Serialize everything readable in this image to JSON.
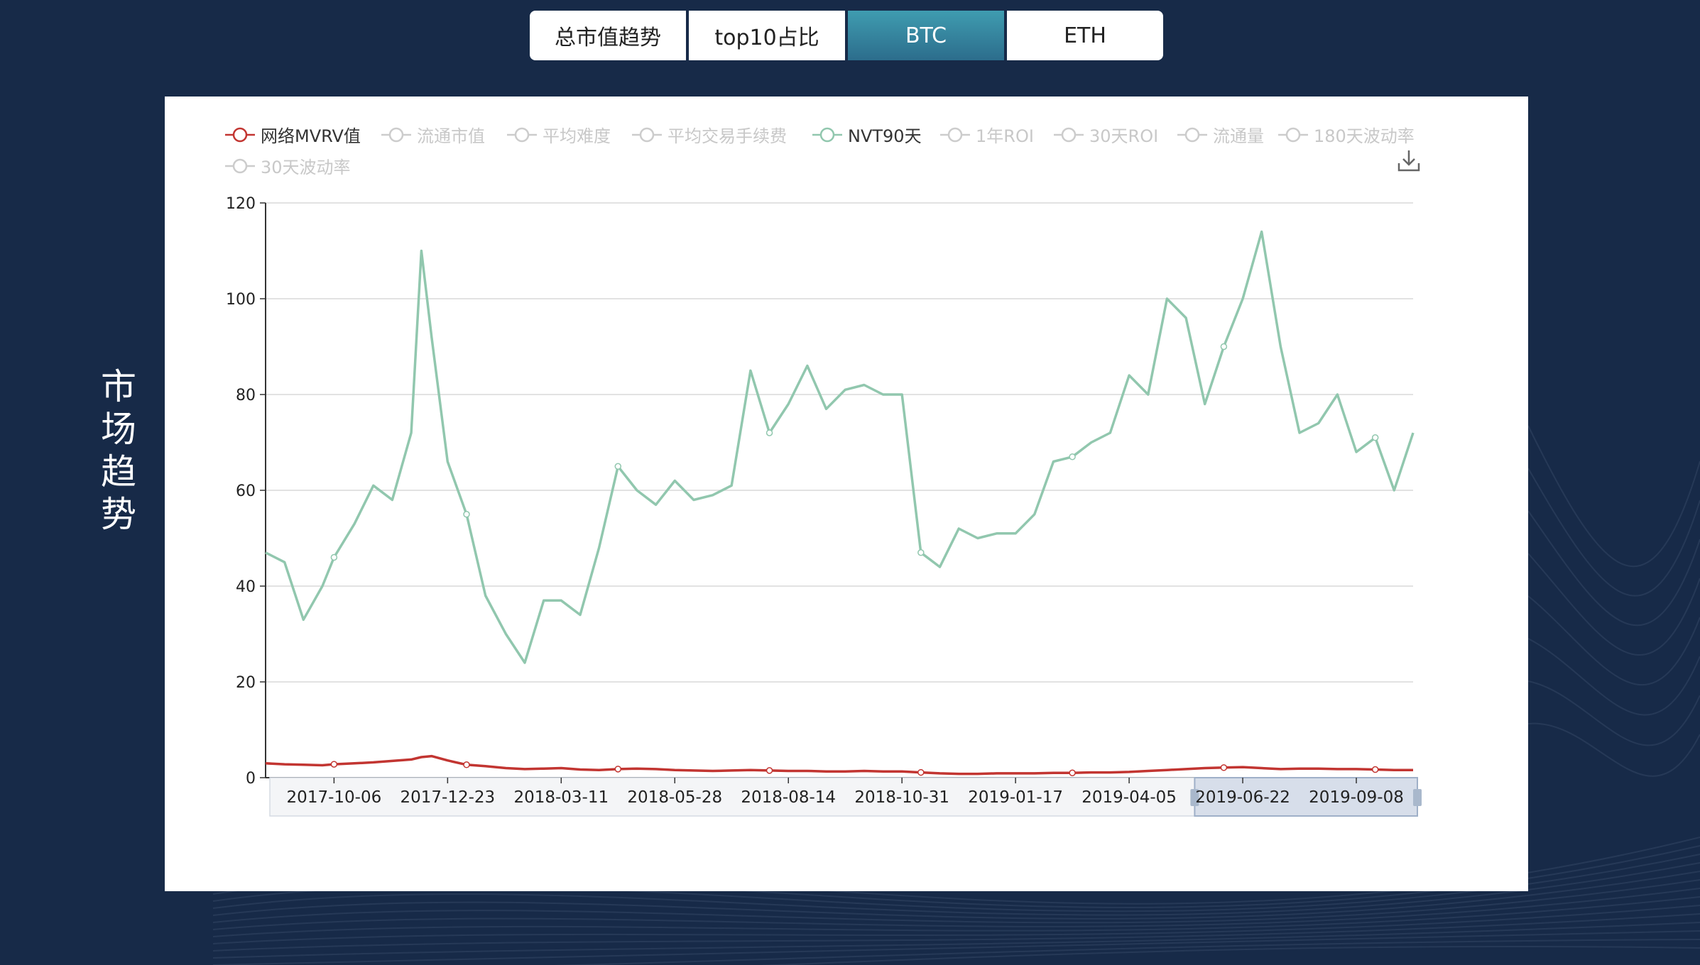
{
  "tabs": [
    {
      "label": "总市值趋势",
      "active": false
    },
    {
      "label": "top10占比",
      "active": false
    },
    {
      "label": "BTC",
      "active": true
    },
    {
      "label": "ETH",
      "active": false
    }
  ],
  "side_title": "市场趋势",
  "colors": {
    "background": "#172a48",
    "tab_active": "#3f9cb0",
    "mvrv": "#c23531",
    "nvt": "#91c7ae",
    "legend_off": "#cccccc"
  },
  "icons": {
    "download": "download-icon"
  },
  "chart_data": {
    "type": "line",
    "title": "",
    "legend": [
      {
        "name": "网络MVRV值",
        "selected": true,
        "color": "#c23531"
      },
      {
        "name": "流通市值",
        "selected": false
      },
      {
        "name": "平均难度",
        "selected": false
      },
      {
        "name": "平均交易手续费",
        "selected": false
      },
      {
        "name": "NVT90天",
        "selected": true,
        "color": "#91c7ae"
      },
      {
        "name": "1年ROI",
        "selected": false
      },
      {
        "name": "30天ROI",
        "selected": false
      },
      {
        "name": "流通量",
        "selected": false
      },
      {
        "name": "180天波动率",
        "selected": false
      },
      {
        "name": "30天波动率",
        "selected": false
      }
    ],
    "legend_position": "top",
    "x": [
      "2017-08-20",
      "2017-09-02",
      "2017-09-15",
      "2017-09-28",
      "2017-10-06",
      "2017-10-20",
      "2017-11-02",
      "2017-11-15",
      "2017-11-28",
      "2017-12-05",
      "2017-12-12",
      "2017-12-23",
      "2018-01-05",
      "2018-01-18",
      "2018-02-01",
      "2018-02-14",
      "2018-02-27",
      "2018-03-11",
      "2018-03-24",
      "2018-04-06",
      "2018-04-19",
      "2018-05-02",
      "2018-05-15",
      "2018-05-28",
      "2018-06-10",
      "2018-06-23",
      "2018-07-06",
      "2018-07-19",
      "2018-08-01",
      "2018-08-14",
      "2018-08-27",
      "2018-09-09",
      "2018-09-22",
      "2018-10-05",
      "2018-10-18",
      "2018-10-31",
      "2018-11-13",
      "2018-11-26",
      "2018-12-09",
      "2018-12-22",
      "2019-01-04",
      "2019-01-17",
      "2019-01-30",
      "2019-02-12",
      "2019-02-25",
      "2019-03-10",
      "2019-03-23",
      "2019-04-05",
      "2019-04-18",
      "2019-05-01",
      "2019-05-14",
      "2019-05-27",
      "2019-06-09",
      "2019-06-22",
      "2019-07-05",
      "2019-07-18",
      "2019-07-31",
      "2019-08-13",
      "2019-08-26",
      "2019-09-08",
      "2019-09-21",
      "2019-10-04",
      "2019-10-17"
    ],
    "x_ticks": [
      "2017-10-06",
      "2017-12-23",
      "2018-03-11",
      "2018-05-28",
      "2018-08-14",
      "2018-10-31",
      "2019-01-17",
      "2019-04-05",
      "2019-06-22",
      "2019-09-08"
    ],
    "series": [
      {
        "name": "网络MVRV值",
        "values": [
          3.0,
          2.8,
          2.7,
          2.6,
          2.8,
          3.0,
          3.2,
          3.5,
          3.8,
          4.3,
          4.5,
          3.6,
          2.7,
          2.4,
          2.0,
          1.8,
          1.9,
          2.0,
          1.7,
          1.6,
          1.8,
          1.9,
          1.8,
          1.6,
          1.5,
          1.4,
          1.5,
          1.6,
          1.5,
          1.4,
          1.4,
          1.3,
          1.3,
          1.4,
          1.3,
          1.3,
          1.1,
          0.9,
          0.8,
          0.8,
          0.9,
          0.9,
          0.9,
          1.0,
          1.0,
          1.1,
          1.1,
          1.2,
          1.4,
          1.6,
          1.8,
          2.0,
          2.1,
          2.2,
          2.0,
          1.8,
          1.9,
          1.9,
          1.8,
          1.8,
          1.7,
          1.6,
          1.6
        ]
      },
      {
        "name": "NVT90天",
        "values": [
          47,
          45,
          33,
          40,
          46,
          53,
          61,
          58,
          72,
          110,
          92,
          66,
          55,
          38,
          30,
          24,
          37,
          37,
          34,
          48,
          65,
          60,
          57,
          62,
          58,
          59,
          61,
          85,
          72,
          78,
          86,
          77,
          81,
          82,
          80,
          80,
          47,
          44,
          52,
          50,
          51,
          51,
          55,
          66,
          67,
          70,
          72,
          84,
          80,
          100,
          96,
          78,
          90,
          100,
          114,
          90,
          72,
          74,
          80,
          68,
          71,
          60,
          72
        ]
      }
    ],
    "ylim": [
      0,
      120
    ],
    "y_ticks": [
      0,
      20,
      40,
      60,
      80,
      100,
      120
    ],
    "grid": true,
    "data_zoom": {
      "start_date": "2019-05-20",
      "end_date": "2019-10-17"
    }
  }
}
